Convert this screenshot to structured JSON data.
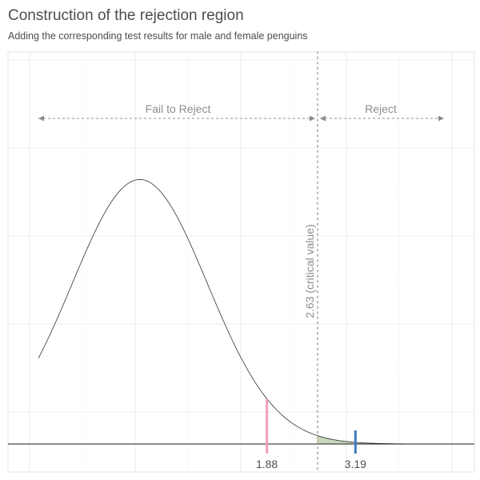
{
  "title": "Construction of the rejection region",
  "subtitle": "Adding the corresponding test results for male and female penguins",
  "chart_data": {
    "type": "area",
    "distribution": "normal",
    "mean": 0,
    "sd": 1,
    "x_range": [
      -1.95,
      4.95
    ],
    "density_range": [
      0,
      0.403
    ],
    "x_hidden": true,
    "y_hidden": true,
    "grid": true,
    "critical_value": 2.63,
    "critical_label": "2.63 (critical value)",
    "regions": [
      {
        "label": "Fail to Reject",
        "color": "#8c8c8c"
      },
      {
        "label": "Reject",
        "color": "#8c8c8c"
      }
    ],
    "rejection_fill": "#c6d8bc",
    "rejection_stroke": "#6b9c5f",
    "test_statistics": [
      {
        "value": 1.88,
        "label": "1.88",
        "color": "#f0a0be"
      },
      {
        "value": 3.19,
        "label": "3.19",
        "color": "#3f7cc2"
      }
    ]
  }
}
